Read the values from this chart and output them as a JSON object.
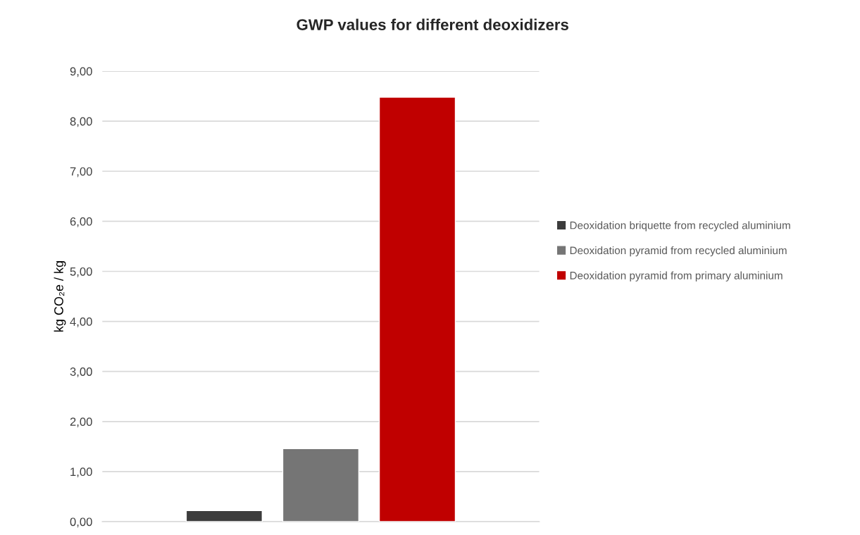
{
  "chart_data": {
    "type": "bar",
    "title": "GWP values for different deoxidizers",
    "ylabel": "kg CO₂e / kg",
    "categories": [
      null
    ],
    "series": [
      {
        "name": "Deoxidation briquette from recycled aluminium",
        "color": "#3c3c3c",
        "values": [
          0.22
        ]
      },
      {
        "name": "Deoxidation pyramid from recycled aluminium",
        "color": "#757575",
        "values": [
          1.46
        ]
      },
      {
        "name": "Deoxidation pyramid from primary aluminium",
        "color": "#c00000",
        "values": [
          8.48
        ]
      }
    ],
    "ylim": [
      0,
      9
    ],
    "yticks": [
      {
        "value": 0,
        "label": "0,00"
      },
      {
        "value": 1,
        "label": "1,00"
      },
      {
        "value": 2,
        "label": "2,00"
      },
      {
        "value": 3,
        "label": "3,00"
      },
      {
        "value": 4,
        "label": "4,00"
      },
      {
        "value": 5,
        "label": "5,00"
      },
      {
        "value": 6,
        "label": "6,00"
      },
      {
        "value": 7,
        "label": "7,00"
      },
      {
        "value": 8,
        "label": "8,00"
      },
      {
        "value": 9,
        "label": "9,00"
      }
    ],
    "grid": "y",
    "legend": "right",
    "tick_labels": "y"
  }
}
